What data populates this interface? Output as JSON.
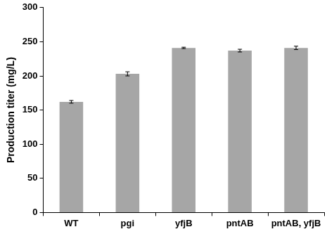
{
  "chart_data": {
    "type": "bar",
    "categories": [
      "WT",
      "pgi",
      "yfjB",
      "pntAB",
      "pntAB, yfjB"
    ],
    "values": [
      162,
      203,
      241,
      237,
      241
    ],
    "errors": [
      2,
      3,
      1,
      2,
      2.5
    ],
    "y_label": "Production titer (mg/L)",
    "color": "#a6a6a6",
    "ylim": [
      0,
      300
    ],
    "yticks": [
      0,
      50,
      100,
      150,
      200,
      250,
      300
    ],
    "grid": false
  }
}
